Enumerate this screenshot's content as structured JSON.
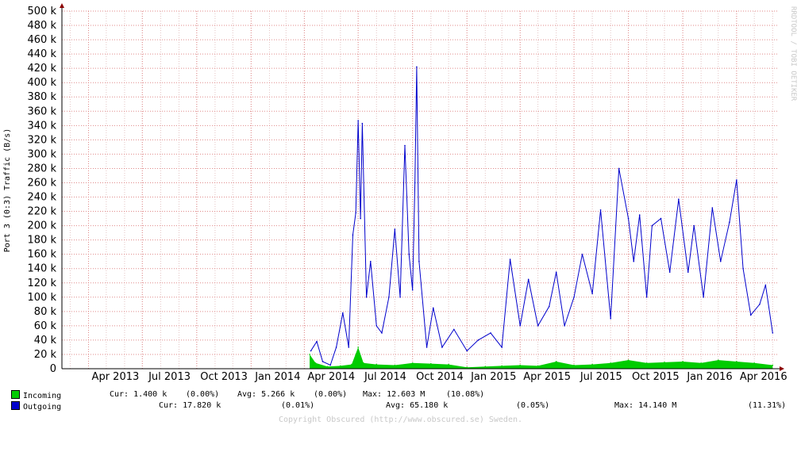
{
  "chart_data": {
    "type": "area",
    "ylabel": "Port 3 (0:3) Traffic (B/s)",
    "yticks": [
      "0",
      "20 k",
      "40 k",
      "60 k",
      "80 k",
      "100 k",
      "120 k",
      "140 k",
      "160 k",
      "180 k",
      "200 k",
      "220 k",
      "240 k",
      "260 k",
      "280 k",
      "300 k",
      "320 k",
      "340 k",
      "360 k",
      "380 k",
      "400 k",
      "420 k",
      "440 k",
      "460 k",
      "480 k",
      "500 k"
    ],
    "ylim": [
      0,
      500000
    ],
    "xticks": [
      "Apr 2013",
      "Jul 2013",
      "Oct 2013",
      "Jan 2014",
      "Apr 2014",
      "Jul 2014",
      "Oct 2014",
      "Jan 2015",
      "Apr 2015",
      "Jul 2015",
      "Oct 2015",
      "Jan 2016",
      "Apr 2016"
    ],
    "xlim": [
      "2013-02-15",
      "2016-06-10"
    ],
    "grid": true,
    "series": [
      {
        "name": "Incoming",
        "color": "#00cc00",
        "points": [
          [
            "2014-04-10",
            20000
          ],
          [
            "2014-04-20",
            8000
          ],
          [
            "2014-05-10",
            3000
          ],
          [
            "2014-06-01",
            4000
          ],
          [
            "2014-06-20",
            6000
          ],
          [
            "2014-07-01",
            30000
          ],
          [
            "2014-07-10",
            8000
          ],
          [
            "2014-08-01",
            6000
          ],
          [
            "2014-09-01",
            5000
          ],
          [
            "2014-10-01",
            8000
          ],
          [
            "2014-11-01",
            7000
          ],
          [
            "2014-12-01",
            6000
          ],
          [
            "2015-01-01",
            2000
          ],
          [
            "2015-02-01",
            3000
          ],
          [
            "2015-03-01",
            4000
          ],
          [
            "2015-04-01",
            5000
          ],
          [
            "2015-05-01",
            4000
          ],
          [
            "2015-06-01",
            10000
          ],
          [
            "2015-07-01",
            5000
          ],
          [
            "2015-08-01",
            6000
          ],
          [
            "2015-09-01",
            8000
          ],
          [
            "2015-10-01",
            12000
          ],
          [
            "2015-11-01",
            8000
          ],
          [
            "2015-12-01",
            9000
          ],
          [
            "2016-01-01",
            10000
          ],
          [
            "2016-02-01",
            8000
          ],
          [
            "2016-03-01",
            12000
          ],
          [
            "2016-04-01",
            10000
          ],
          [
            "2016-05-01",
            8000
          ],
          [
            "2016-06-01",
            5000
          ]
        ]
      },
      {
        "name": "Outgoing",
        "color": "#0000cc",
        "points": [
          [
            "2014-04-12",
            25000
          ],
          [
            "2014-04-22",
            38000
          ],
          [
            "2014-05-02",
            10000
          ],
          [
            "2014-05-15",
            5000
          ],
          [
            "2014-05-25",
            30000
          ],
          [
            "2014-06-05",
            78000
          ],
          [
            "2014-06-15",
            30000
          ],
          [
            "2014-06-22",
            187000
          ],
          [
            "2014-06-27",
            218000
          ],
          [
            "2014-07-01",
            347000
          ],
          [
            "2014-07-05",
            210000
          ],
          [
            "2014-07-08",
            343000
          ],
          [
            "2014-07-15",
            100000
          ],
          [
            "2014-07-22",
            150000
          ],
          [
            "2014-08-01",
            60000
          ],
          [
            "2014-08-10",
            50000
          ],
          [
            "2014-08-22",
            100000
          ],
          [
            "2014-09-01",
            195000
          ],
          [
            "2014-09-10",
            100000
          ],
          [
            "2014-09-18",
            312000
          ],
          [
            "2014-09-25",
            160000
          ],
          [
            "2014-10-01",
            110000
          ],
          [
            "2014-10-05",
            260000
          ],
          [
            "2014-10-08",
            422000
          ],
          [
            "2014-10-12",
            150000
          ],
          [
            "2014-10-25",
            30000
          ],
          [
            "2014-11-05",
            85000
          ],
          [
            "2014-11-20",
            30000
          ],
          [
            "2014-12-10",
            55000
          ],
          [
            "2015-01-01",
            25000
          ],
          [
            "2015-01-20",
            40000
          ],
          [
            "2015-02-10",
            50000
          ],
          [
            "2015-03-01",
            30000
          ],
          [
            "2015-03-15",
            153000
          ],
          [
            "2015-04-01",
            60000
          ],
          [
            "2015-04-15",
            125000
          ],
          [
            "2015-05-01",
            60000
          ],
          [
            "2015-05-20",
            87000
          ],
          [
            "2015-06-01",
            135000
          ],
          [
            "2015-06-15",
            60000
          ],
          [
            "2015-07-01",
            100000
          ],
          [
            "2015-07-15",
            160000
          ],
          [
            "2015-08-01",
            105000
          ],
          [
            "2015-08-15",
            222000
          ],
          [
            "2015-09-01",
            70000
          ],
          [
            "2015-09-15",
            280000
          ],
          [
            "2015-10-01",
            210000
          ],
          [
            "2015-10-10",
            150000
          ],
          [
            "2015-10-20",
            215000
          ],
          [
            "2015-11-01",
            100000
          ],
          [
            "2015-11-10",
            200000
          ],
          [
            "2015-11-25",
            210000
          ],
          [
            "2015-12-10",
            135000
          ],
          [
            "2015-12-25",
            237000
          ],
          [
            "2016-01-10",
            135000
          ],
          [
            "2016-01-20",
            200000
          ],
          [
            "2016-02-05",
            100000
          ],
          [
            "2016-02-20",
            225000
          ],
          [
            "2016-03-05",
            150000
          ],
          [
            "2016-03-20",
            205000
          ],
          [
            "2016-04-01",
            264000
          ],
          [
            "2016-04-12",
            140000
          ],
          [
            "2016-04-25",
            75000
          ],
          [
            "2016-05-10",
            90000
          ],
          [
            "2016-05-20",
            117000
          ],
          [
            "2016-06-01",
            50000
          ]
        ]
      }
    ]
  },
  "watermark": "RRDTOOL / TOBI OETIKER",
  "legend": [
    {
      "label": "Incoming",
      "cur": "Cur: 1.400 k",
      "cur_pct": "(0.00%)",
      "avg": "Avg: 5.266 k",
      "avg_pct": "(0.00%)",
      "max": "Max: 12.603 M",
      "max_pct": "(10.08%)",
      "color": "#00cc00"
    },
    {
      "label": "Outgoing",
      "cur": "Cur: 17.820 k",
      "cur_pct": "(0.01%)",
      "avg": "Avg: 65.180 k",
      "avg_pct": "(0.05%)",
      "max": "Max: 14.140 M",
      "max_pct": "(11.31%)",
      "color": "#0000cc"
    }
  ],
  "copyright": "Copyright Obscured (http://www.obscured.se) Sweden."
}
